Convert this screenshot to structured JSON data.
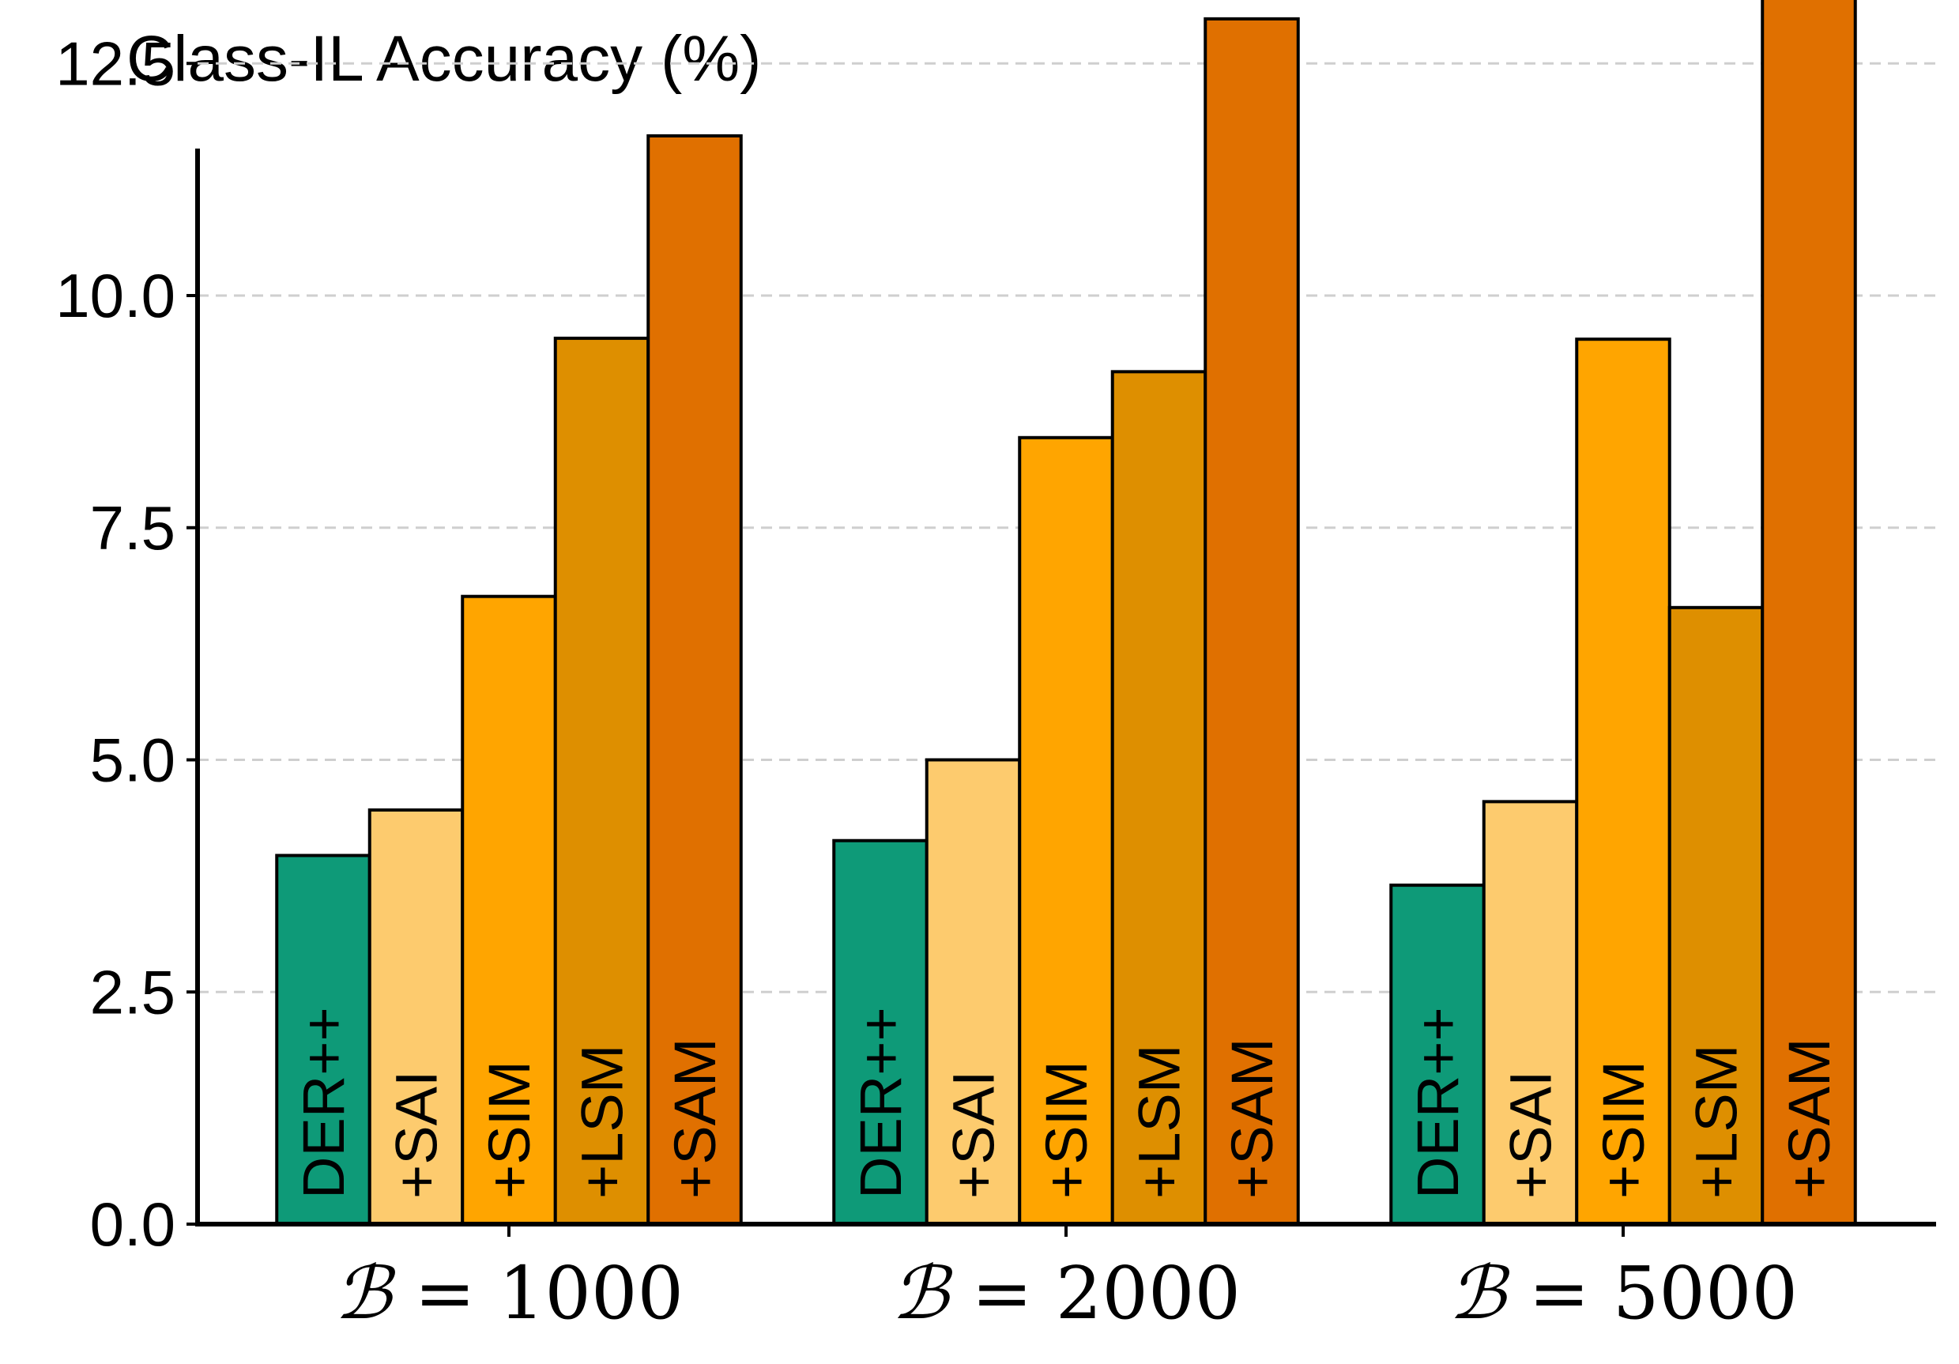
{
  "chart_data": {
    "type": "bar",
    "title": "",
    "ylabel": "Class-IL Accuracy (%)",
    "xlabel": "",
    "ylim": [
      0,
      14.5
    ],
    "yticks": [
      "0.0",
      "2.5",
      "5.0",
      "7.5",
      "10.0",
      "12.5"
    ],
    "ytick_values": [
      0,
      2.5,
      5.0,
      7.5,
      10.0,
      12.5
    ],
    "grid": "horizontal dashed",
    "groups": [
      {
        "prefix": "ℬ",
        "eq": "= 1000"
      },
      {
        "prefix": "ℬ",
        "eq": "= 2000"
      },
      {
        "prefix": "ℬ",
        "eq": "= 5000"
      }
    ],
    "series": [
      {
        "name": "DER++",
        "color": "#0e9a78",
        "values": [
          3.97,
          4.13,
          3.65
        ]
      },
      {
        "name": "+SAI",
        "color": "#fdcb6e",
        "values": [
          4.46,
          5.0,
          4.55
        ]
      },
      {
        "name": "+SIM",
        "color": "#ffa500",
        "values": [
          6.76,
          8.47,
          9.53
        ]
      },
      {
        "name": "+LSM",
        "color": "#de8f00",
        "values": [
          9.54,
          9.18,
          6.64
        ]
      },
      {
        "name": "+SAM",
        "color": "#e07000",
        "values": [
          11.72,
          12.98,
          13.76
        ]
      }
    ]
  }
}
